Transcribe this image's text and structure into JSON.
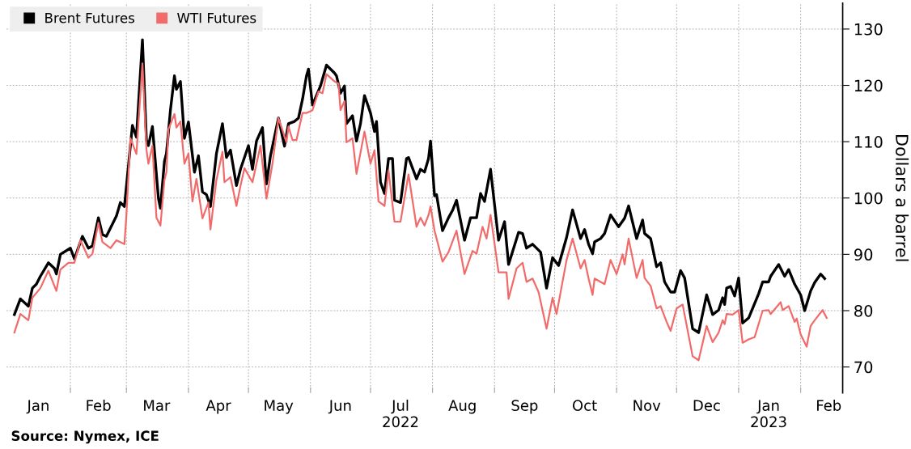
{
  "chart_data": {
    "type": "line",
    "ylabel": "Dollars a barrel",
    "legend": "top left",
    "grid": true,
    "marker": "none",
    "line_style": "solid",
    "annotations": [
      "Source: Nymex, ICE"
    ],
    "xlim": [
      "2021-12-31",
      "2023-02-22"
    ],
    "ylim": [
      65.4,
      134.6
    ],
    "yticks": [
      70,
      80,
      90,
      100,
      110,
      120,
      130
    ],
    "xticks": [
      {
        "value": "2022-02-01",
        "label": null
      },
      {
        "value": "2022-03-01",
        "label": null
      },
      {
        "value": "2022-04-01",
        "label": null
      },
      {
        "value": "2022-05-01",
        "label": null
      },
      {
        "value": "2022-06-01",
        "label": null
      },
      {
        "value": "2022-07-01",
        "label": null
      },
      {
        "value": "2022-08-01",
        "label": null
      },
      {
        "value": "2022-09-01",
        "label": null
      },
      {
        "value": "2022-10-01",
        "label": null
      },
      {
        "value": "2022-11-01",
        "label": null
      },
      {
        "value": "2022-12-01",
        "label": null
      },
      {
        "value": "2023-01-01",
        "label": null
      },
      {
        "value": "2023-02-01",
        "label": null
      },
      {
        "value": "2022-01-16",
        "label": "Jan"
      },
      {
        "value": "2022-02-15",
        "label": "Feb"
      },
      {
        "value": "2022-03-16",
        "label": "Mar"
      },
      {
        "value": "2022-04-16",
        "label": "Apr"
      },
      {
        "value": "2022-05-16",
        "label": "May"
      },
      {
        "value": "2022-06-16",
        "label": "Jun"
      },
      {
        "value": "2022-07-16",
        "label": "Jul\n2022"
      },
      {
        "value": "2022-08-16",
        "label": "Aug"
      },
      {
        "value": "2022-09-16",
        "label": "Sep"
      },
      {
        "value": "2022-10-16",
        "label": "Oct"
      },
      {
        "value": "2022-11-16",
        "label": "Nov"
      },
      {
        "value": "2022-12-16",
        "label": "Dec"
      },
      {
        "value": "2023-01-16",
        "label": "Jan\n2023"
      },
      {
        "value": "2023-02-15",
        "label": "Feb"
      }
    ],
    "series": [
      {
        "name": "Brent Futures",
        "color": "#000000",
        "x": [
          "2022-01-04",
          "2022-01-07",
          "2022-01-11",
          "2022-01-13",
          "2022-01-15",
          "2022-01-17",
          "2022-01-21",
          "2022-01-24",
          "2022-01-25",
          "2022-01-27",
          "2022-02-01",
          "2022-02-03",
          "2022-02-07",
          "2022-02-10",
          "2022-02-12",
          "2022-02-15",
          "2022-02-17",
          "2022-02-19",
          "2022-02-24",
          "2022-02-26",
          "2022-02-28",
          "2022-03-04",
          "2022-03-06",
          "2022-03-09",
          "2022-03-11",
          "2022-03-12",
          "2022-03-14",
          "2022-03-17",
          "2022-03-18",
          "2022-03-20",
          "2022-03-21",
          "2022-03-23",
          "2022-03-25",
          "2022-03-26",
          "2022-03-28",
          "2022-03-30",
          "2022-04-01",
          "2022-04-04",
          "2022-04-06",
          "2022-04-08",
          "2022-04-10",
          "2022-04-12",
          "2022-04-15",
          "2022-04-18",
          "2022-04-20",
          "2022-04-22",
          "2022-04-25",
          "2022-04-27",
          "2022-05-01",
          "2022-05-03",
          "2022-05-05",
          "2022-05-08",
          "2022-05-10",
          "2022-05-12",
          "2022-05-16",
          "2022-05-19",
          "2022-05-21",
          "2022-05-24",
          "2022-05-26",
          "2022-05-28",
          "2022-05-30",
          "2022-05-31",
          "2022-06-02",
          "2022-06-06",
          "2022-06-09",
          "2022-06-13",
          "2022-06-14",
          "2022-06-16",
          "2022-06-18",
          "2022-06-19",
          "2022-06-22",
          "2022-06-24",
          "2022-06-26",
          "2022-06-28",
          "2022-07-01",
          "2022-07-03",
          "2022-07-04",
          "2022-07-06",
          "2022-07-08",
          "2022-07-10",
          "2022-07-12",
          "2022-07-13",
          "2022-07-16",
          "2022-07-19",
          "2022-07-20",
          "2022-07-24",
          "2022-07-26",
          "2022-07-28",
          "2022-07-30",
          "2022-07-31",
          "2022-08-02",
          "2022-08-03",
          "2022-08-06",
          "2022-08-09",
          "2022-08-11",
          "2022-08-13",
          "2022-08-17",
          "2022-08-20",
          "2022-08-23",
          "2022-08-25",
          "2022-08-27",
          "2022-08-30",
          "2022-09-03",
          "2022-09-06",
          "2022-09-08",
          "2022-09-13",
          "2022-09-15",
          "2022-09-17",
          "2022-09-20",
          "2022-09-24",
          "2022-09-27",
          "2022-09-30",
          "2022-10-03",
          "2022-10-07",
          "2022-10-10",
          "2022-10-14",
          "2022-10-16",
          "2022-10-18",
          "2022-10-20",
          "2022-10-21",
          "2022-10-24",
          "2022-10-26",
          "2022-10-29",
          "2022-11-02",
          "2022-11-05",
          "2022-11-07",
          "2022-11-11",
          "2022-11-14",
          "2022-11-15",
          "2022-11-18",
          "2022-11-21",
          "2022-11-23",
          "2022-11-25",
          "2022-11-28",
          "2022-11-30",
          "2022-12-03",
          "2022-12-05",
          "2022-12-09",
          "2022-12-12",
          "2022-12-16",
          "2022-12-19",
          "2022-12-22",
          "2022-12-24",
          "2022-12-25",
          "2022-12-26",
          "2022-12-28",
          "2022-12-30",
          "2023-01-01",
          "2023-01-03",
          "2023-01-06",
          "2023-01-11",
          "2023-01-13",
          "2023-01-16",
          "2023-01-17",
          "2023-01-21",
          "2023-01-24",
          "2023-01-26",
          "2023-01-29",
          "2023-02-01",
          "2023-02-03",
          "2023-02-06",
          "2023-02-08",
          "2023-02-11",
          "2023-02-13"
        ],
        "values": [
          79.3,
          82.1,
          80.8,
          84.0,
          84.7,
          86.1,
          88.5,
          87.5,
          86.5,
          90.0,
          91.1,
          89.2,
          93.2,
          91.1,
          91.5,
          96.5,
          93.5,
          93.2,
          96.8,
          99.2,
          98.5,
          112.9,
          110.8,
          128.1,
          110.3,
          109.3,
          112.7,
          99.9,
          98.2,
          106.5,
          107.9,
          115.6,
          121.7,
          119.3,
          120.7,
          110.6,
          113.5,
          104.6,
          107.5,
          101.1,
          100.6,
          98.5,
          107.9,
          113.2,
          107.2,
          108.5,
          102.2,
          105.1,
          109.3,
          105.1,
          110.1,
          112.5,
          102.5,
          107.5,
          114.2,
          109.2,
          113.2,
          113.6,
          114.2,
          117.5,
          121.7,
          122.9,
          116.5,
          119.9,
          123.6,
          122.2,
          121.7,
          118.6,
          119.9,
          113.2,
          114.6,
          110.1,
          113.2,
          118.2,
          115.1,
          111.8,
          113.6,
          102.8,
          100.8,
          107.0,
          107.0,
          99.6,
          99.2,
          107.0,
          107.2,
          103.4,
          105.1,
          104.6,
          107.0,
          110.1,
          100.4,
          100.6,
          94.2,
          96.5,
          97.8,
          99.6,
          92.5,
          96.5,
          96.5,
          100.8,
          99.4,
          105.1,
          92.5,
          95.8,
          88.2,
          93.9,
          93.7,
          91.1,
          91.8,
          90.4,
          84.0,
          89.4,
          88.0,
          93.0,
          97.9,
          92.8,
          94.4,
          91.8,
          90.1,
          92.2,
          92.8,
          93.7,
          97.0,
          94.9,
          96.4,
          98.6,
          92.8,
          96.1,
          93.7,
          92.8,
          87.8,
          88.5,
          85.1,
          83.3,
          83.3,
          87.1,
          85.8,
          76.8,
          76.1,
          82.8,
          79.3,
          80.1,
          82.3,
          81.1,
          84.0,
          84.3,
          82.6,
          85.8,
          77.8,
          78.7,
          83.0,
          85.1,
          85.1,
          86.1,
          88.2,
          86.1,
          87.3,
          84.7,
          82.8,
          80.0,
          83.5,
          85.0,
          86.5,
          85.7
        ]
      },
      {
        "name": "WTI Futures",
        "color": "#f26b6b",
        "x": [
          "2022-01-04",
          "2022-01-07",
          "2022-01-11",
          "2022-01-13",
          "2022-01-17",
          "2022-01-21",
          "2022-01-25",
          "2022-01-27",
          "2022-01-31",
          "2022-02-03",
          "2022-02-06",
          "2022-02-10",
          "2022-02-12",
          "2022-02-15",
          "2022-02-17",
          "2022-02-21",
          "2022-02-24",
          "2022-02-28",
          "2022-03-01",
          "2022-03-03",
          "2022-03-06",
          "2022-03-09",
          "2022-03-11",
          "2022-03-12",
          "2022-03-14",
          "2022-03-16",
          "2022-03-18",
          "2022-03-20",
          "2022-03-21",
          "2022-03-22",
          "2022-03-25",
          "2022-03-26",
          "2022-03-28",
          "2022-03-30",
          "2022-04-01",
          "2022-04-03",
          "2022-04-05",
          "2022-04-08",
          "2022-04-11",
          "2022-04-12",
          "2022-04-15",
          "2022-04-18",
          "2022-04-19",
          "2022-04-22",
          "2022-04-25",
          "2022-04-27",
          "2022-04-29",
          "2022-05-03",
          "2022-05-07",
          "2022-05-10",
          "2022-05-13",
          "2022-05-16",
          "2022-05-20",
          "2022-05-21",
          "2022-05-23",
          "2022-05-25",
          "2022-05-28",
          "2022-05-30",
          "2022-06-02",
          "2022-06-05",
          "2022-06-07",
          "2022-06-09",
          "2022-06-13",
          "2022-06-15",
          "2022-06-16",
          "2022-06-18",
          "2022-06-19",
          "2022-06-22",
          "2022-06-24",
          "2022-06-28",
          "2022-07-01",
          "2022-07-03",
          "2022-07-05",
          "2022-07-08",
          "2022-07-10",
          "2022-07-13",
          "2022-07-16",
          "2022-07-20",
          "2022-07-24",
          "2022-07-26",
          "2022-07-28",
          "2022-07-30",
          "2022-07-31",
          "2022-08-02",
          "2022-08-06",
          "2022-08-09",
          "2022-08-13",
          "2022-08-17",
          "2022-08-21",
          "2022-08-23",
          "2022-08-26",
          "2022-08-28",
          "2022-08-30",
          "2022-09-03",
          "2022-09-07",
          "2022-09-08",
          "2022-09-12",
          "2022-09-15",
          "2022-09-17",
          "2022-09-20",
          "2022-09-23",
          "2022-09-27",
          "2022-09-30",
          "2022-10-02",
          "2022-10-07",
          "2022-10-10",
          "2022-10-14",
          "2022-10-16",
          "2022-10-18",
          "2022-10-20",
          "2022-10-21",
          "2022-10-26",
          "2022-10-29",
          "2022-11-01",
          "2022-11-04",
          "2022-11-05",
          "2022-11-07",
          "2022-11-11",
          "2022-11-14",
          "2022-11-15",
          "2022-11-18",
          "2022-11-21",
          "2022-11-23",
          "2022-11-26",
          "2022-11-28",
          "2022-12-01",
          "2022-12-04",
          "2022-12-09",
          "2022-12-12",
          "2022-12-16",
          "2022-12-19",
          "2022-12-22",
          "2022-12-24",
          "2022-12-25",
          "2022-12-26",
          "2022-12-29",
          "2023-01-01",
          "2023-01-03",
          "2023-01-06",
          "2023-01-09",
          "2023-01-13",
          "2023-01-16",
          "2023-01-17",
          "2023-01-22",
          "2023-01-23",
          "2023-01-26",
          "2023-01-29",
          "2023-01-30",
          "2023-02-01",
          "2023-02-04",
          "2023-02-06",
          "2023-02-08",
          "2023-02-12",
          "2023-02-14"
        ],
        "values": [
          76.1,
          79.4,
          78.3,
          82.3,
          84.0,
          87.1,
          83.5,
          87.3,
          88.5,
          88.5,
          92.5,
          89.4,
          90.1,
          95.6,
          92.2,
          91.1,
          92.5,
          91.8,
          97.0,
          110.6,
          107.8,
          123.9,
          108.6,
          106.1,
          109.3,
          96.5,
          95.1,
          103.2,
          104.6,
          112.2,
          114.9,
          112.5,
          113.6,
          106.1,
          107.9,
          99.4,
          103.4,
          96.4,
          99.2,
          94.4,
          103.2,
          108.2,
          102.8,
          103.7,
          98.6,
          102.1,
          105.3,
          102.8,
          109.3,
          99.9,
          106.1,
          114.2,
          109.9,
          112.7,
          110.3,
          110.3,
          115.1,
          115.1,
          115.6,
          118.9,
          118.6,
          122.0,
          120.7,
          120.3,
          115.6,
          117.2,
          109.9,
          110.6,
          104.3,
          111.8,
          106.1,
          108.5,
          99.4,
          98.6,
          104.9,
          95.8,
          95.8,
          104.2,
          94.9,
          96.5,
          95.1,
          97.0,
          98.5,
          94.2,
          88.7,
          90.4,
          94.2,
          86.5,
          90.6,
          90.1,
          94.9,
          92.8,
          97.0,
          86.8,
          86.8,
          82.1,
          87.5,
          88.5,
          85.1,
          85.7,
          83.3,
          76.8,
          82.3,
          79.4,
          89.0,
          92.8,
          87.5,
          89.0,
          85.7,
          82.8,
          85.7,
          84.7,
          89.0,
          86.5,
          90.0,
          88.2,
          92.8,
          85.8,
          89.0,
          85.8,
          84.4,
          80.4,
          80.8,
          78.0,
          76.4,
          80.4,
          81.1,
          71.9,
          71.2,
          77.3,
          74.4,
          76.1,
          78.3,
          77.6,
          79.4,
          79.3,
          80.1,
          74.3,
          74.9,
          75.3,
          80.0,
          80.1,
          79.4,
          81.5,
          80.1,
          80.8,
          78.0,
          78.6,
          75.8,
          73.6,
          77.3,
          78.3,
          80.1,
          78.7
        ]
      }
    ]
  }
}
